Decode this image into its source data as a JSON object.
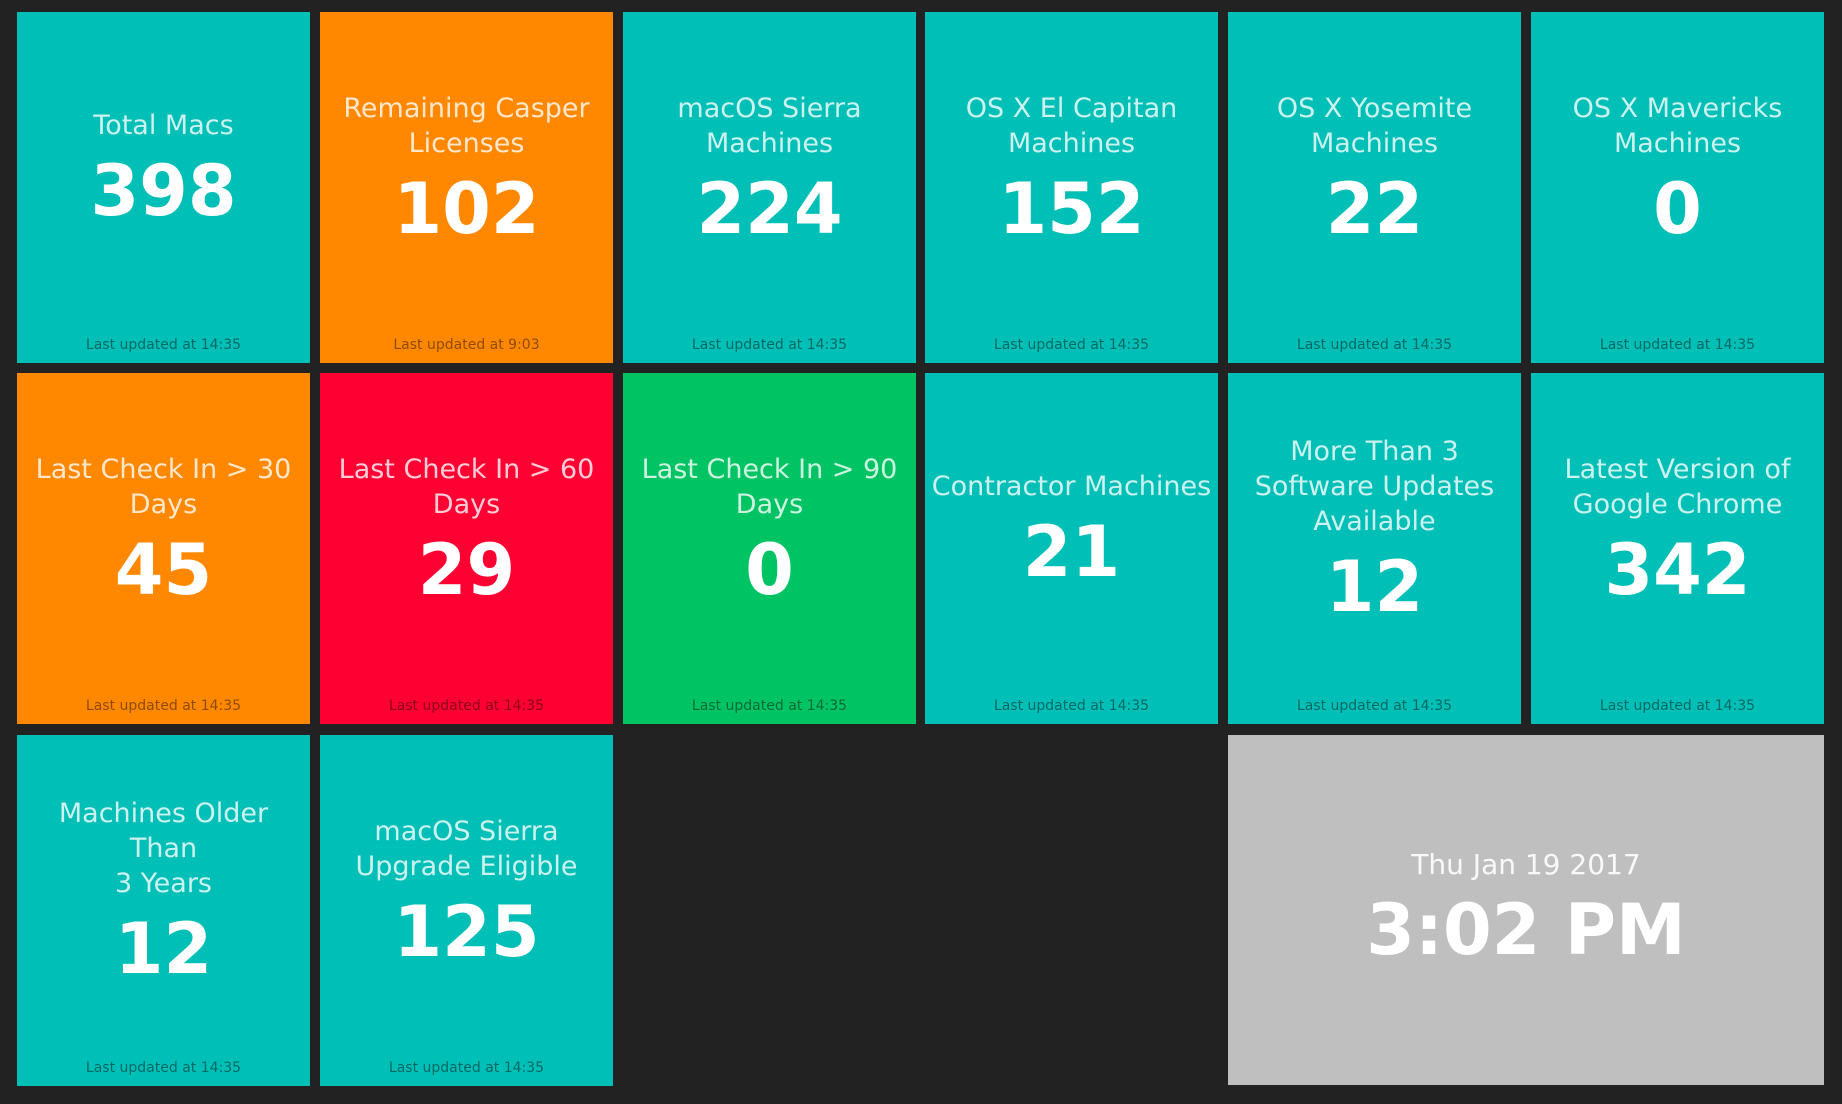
{
  "tiles": [
    {
      "title": "Total Macs",
      "value": "398",
      "updated": "Last updated at 14:35",
      "color": "#00bfb6"
    },
    {
      "title": "Remaining Casper\nLicenses",
      "value": "102",
      "updated": "Last updated at 9:03",
      "color": "#ff8800"
    },
    {
      "title": "macOS Sierra\nMachines",
      "value": "224",
      "updated": "Last updated at 14:35",
      "color": "#00bfb6"
    },
    {
      "title": "OS X El Capitan\nMachines",
      "value": "152",
      "updated": "Last updated at 14:35",
      "color": "#00bfb6"
    },
    {
      "title": "OS X Yosemite\nMachines",
      "value": "22",
      "updated": "Last updated at 14:35",
      "color": "#00bfb6"
    },
    {
      "title": "OS X Mavericks\nMachines",
      "value": "0",
      "updated": "Last updated at 14:35",
      "color": "#00bfb6"
    },
    {
      "title": "Last Check In > 30\nDays",
      "value": "45",
      "updated": "Last updated at 14:35",
      "color": "#ff8800"
    },
    {
      "title": "Last Check In > 60\nDays",
      "value": "29",
      "updated": "Last updated at 14:35",
      "color": "#ff0033"
    },
    {
      "title": "Last Check In > 90\nDays",
      "value": "0",
      "updated": "Last updated at 14:35",
      "color": "#00c364"
    },
    {
      "title": "Contractor Machines",
      "value": "21",
      "updated": "Last updated at 14:35",
      "color": "#00bfb6"
    },
    {
      "title": "More Than 3\nSoftware Updates\nAvailable",
      "value": "12",
      "updated": "Last updated at 14:35",
      "color": "#00bfb6"
    },
    {
      "title": "Latest Version of\nGoogle Chrome",
      "value": "342",
      "updated": "Last updated at 14:35",
      "color": "#00bfb6"
    },
    {
      "title": "Machines Older Than\n3 Years",
      "value": "12",
      "updated": "Last updated at 14:35",
      "color": "#00bfb6"
    },
    {
      "title": "macOS Sierra\nUpgrade Eligible",
      "value": "125",
      "updated": "Last updated at 14:35",
      "color": "#00bfb6"
    }
  ],
  "clock": {
    "date": "Thu Jan 19 2017",
    "time": "3:02 PM",
    "color": "#bfbfbf"
  }
}
